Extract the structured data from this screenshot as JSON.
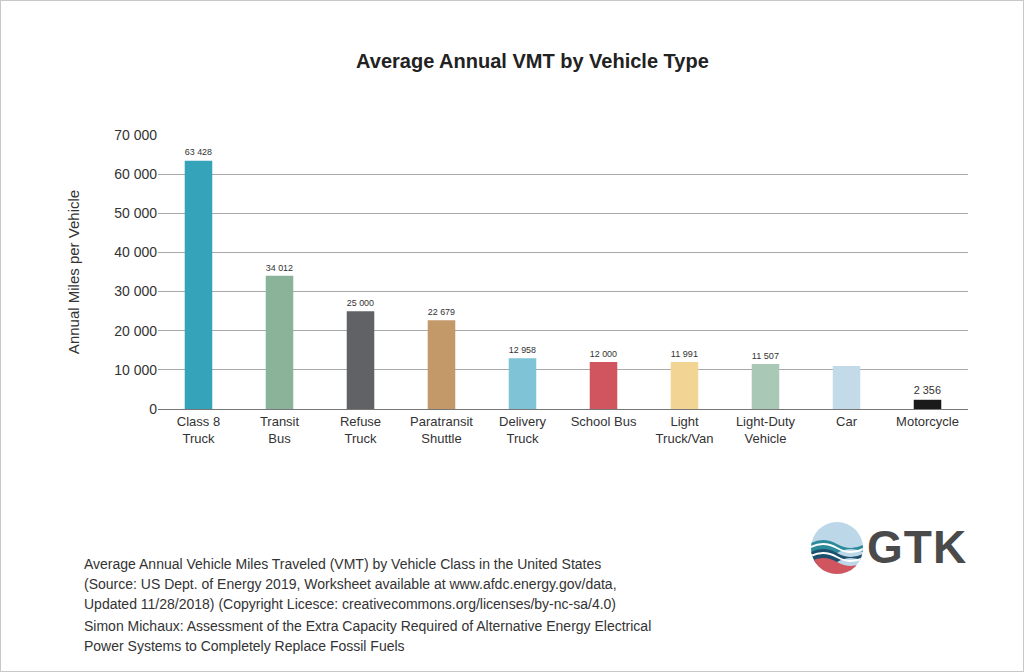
{
  "chart_data": {
    "type": "bar",
    "title": "Average Annual VMT by Vehicle Type",
    "y_label": "Annual Miles per Vehicle",
    "categories": [
      "Class 8 Truck",
      "Transit Bus",
      "Refuse Truck",
      "Paratransit Shuttle",
      "Delivery Truck",
      "School Bus",
      "Light Truck/Van",
      "Light-Duty Vehicle",
      "Car",
      "Motorcycle"
    ],
    "values": [
      63428,
      34012,
      25000,
      22679,
      12958,
      12000,
      11991,
      11507,
      11000,
      2356
    ],
    "value_labels": [
      "63 428",
      "34 012",
      "25 000",
      "22 679",
      "12 958",
      "12 000",
      "11 991",
      "11 507",
      null,
      "2 356"
    ],
    "colors": [
      "#35a4bb",
      "#8bb39a",
      "#616266",
      "#c4996a",
      "#7ec3d6",
      "#d1555e",
      "#f2d494",
      "#a9c8b5",
      "#c3dbe8",
      "#1a1a1a"
    ],
    "ylim": [
      0,
      70000
    ],
    "yticks": [
      0,
      {
        "value": 10000,
        "label": "10 000"
      },
      {
        "value": 20000,
        "label": "20 000"
      },
      {
        "value": 30000,
        "label": "30 000"
      },
      {
        "value": 40000,
        "label": "40 000"
      },
      {
        "value": 50000,
        "label": "50 000"
      },
      {
        "value": 60000,
        "label": "60 000"
      },
      {
        "value": 70000,
        "label": "70 000"
      }
    ],
    "grid": true,
    "data_labels": true
  },
  "caption": [
    "Average Annual Vehicle Miles Traveled (VMT) by Vehicle Class in the United States",
    "(Source: US Dept. of Energy 2019, Worksheet available at www.afdc.energy.gov/data,",
    "Updated 11/28/2018) (Copyright Licesce: creativecommons.org/licenses/by-nc-sa/4.0)"
  ],
  "credit": [
    "Simon Michaux: Assessment of the Extra Capacity Required of Alternative Energy Electrical",
    "Power Systems to Completely Replace Fossil Fuels"
  ],
  "logo": "GTK"
}
